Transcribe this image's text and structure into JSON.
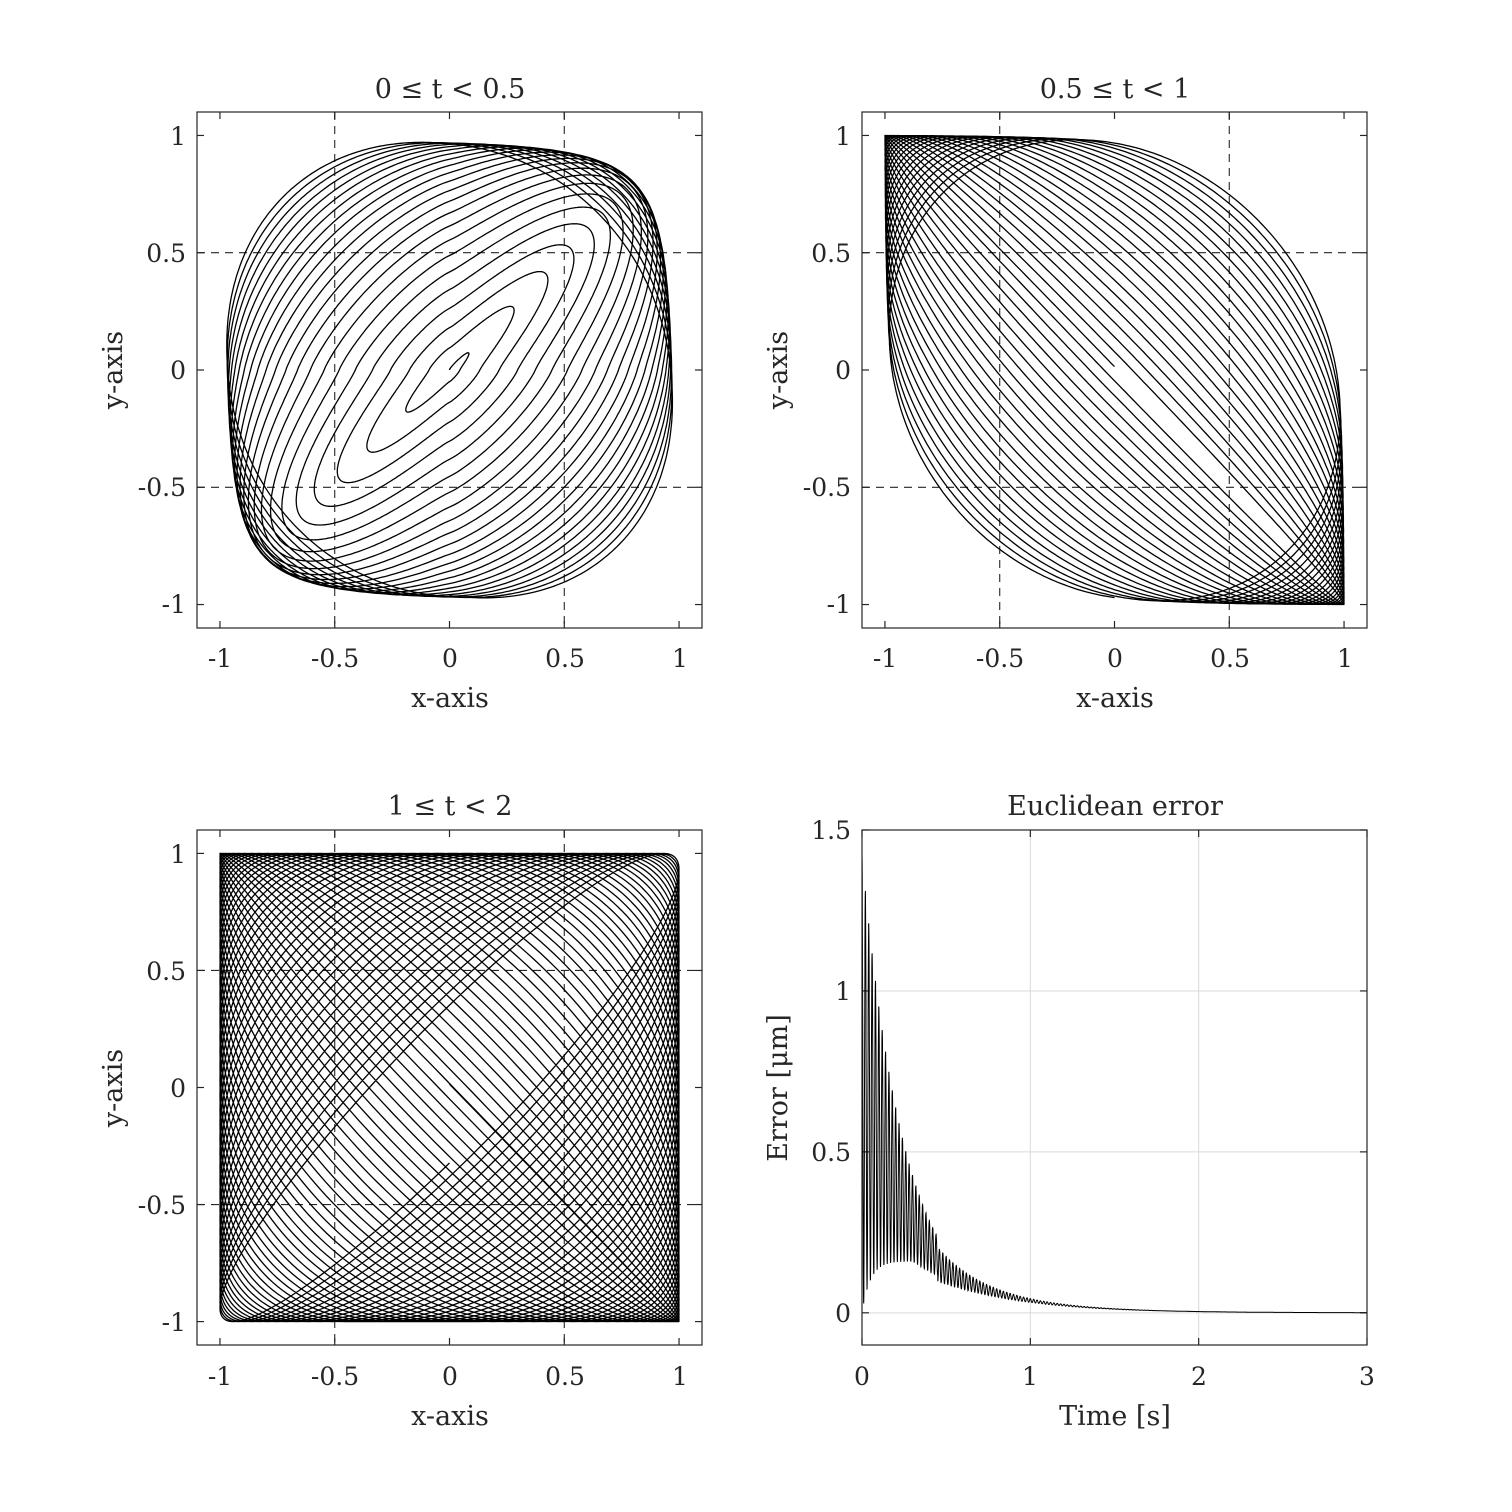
{
  "chart_data": [
    {
      "type": "line",
      "title": "0 ≤ t < 0.5",
      "xlabel": "x-axis",
      "ylabel": "y-axis",
      "xlim": [
        -1.1,
        1.1
      ],
      "ylim": [
        -1.1,
        1.1
      ],
      "xticks": [
        -1,
        -0.5,
        0,
        0.5,
        1
      ],
      "yticks": [
        -1,
        -0.5,
        0,
        0.5,
        1
      ],
      "xtick_labels": [
        "-1",
        "-0.5",
        "0",
        "0.5",
        "1"
      ],
      "ytick_labels": [
        "-1",
        "-0.5",
        "0",
        "0.5",
        "1"
      ],
      "grid": "dashed",
      "gridlines": [
        -0.5,
        0.5
      ],
      "curve": {
        "kind": "lissajous",
        "t_range": [
          0,
          0.5
        ],
        "amplitude_start": 0.0,
        "amplitude_end": 0.97,
        "freq_x": 100,
        "freq_y": 101,
        "skew": 0.24
      }
    },
    {
      "type": "line",
      "title": "0.5 ≤ t < 1",
      "xlabel": "x-axis",
      "ylabel": "y-axis",
      "xlim": [
        -1.1,
        1.1
      ],
      "ylim": [
        -1.1,
        1.1
      ],
      "xticks": [
        -1,
        -0.5,
        0,
        0.5,
        1
      ],
      "yticks": [
        -1,
        -0.5,
        0,
        0.5,
        1
      ],
      "xtick_labels": [
        "-1",
        "-0.5",
        "0",
        "0.5",
        "1"
      ],
      "ytick_labels": [
        "-1",
        "-0.5",
        "0",
        "0.5",
        "1"
      ],
      "grid": "dashed",
      "gridlines": [
        -0.5,
        0.5
      ],
      "curve": {
        "kind": "lissajous",
        "t_range": [
          0.5,
          1
        ],
        "amplitude_start": 0.98,
        "amplitude_end": 1.0,
        "freq_x": 100,
        "freq_y": 101,
        "skew": 0.02
      }
    },
    {
      "type": "line",
      "title": "1 ≤ t < 2",
      "xlabel": "x-axis",
      "ylabel": "y-axis",
      "xlim": [
        -1.1,
        1.1
      ],
      "ylim": [
        -1.1,
        1.1
      ],
      "xticks": [
        -1,
        -0.5,
        0,
        0.5,
        1
      ],
      "yticks": [
        -1,
        -0.5,
        0,
        0.5,
        1
      ],
      "xtick_labels": [
        "-1",
        "-0.5",
        "0",
        "0.5",
        "1"
      ],
      "ytick_labels": [
        "-1",
        "-0.5",
        "0",
        "0.5",
        "1"
      ],
      "grid": "dashed",
      "gridlines": [
        -0.5,
        0.5
      ],
      "curve": {
        "kind": "lissajous",
        "t_range": [
          1,
          2
        ],
        "amplitude_start": 1.0,
        "amplitude_end": 1.0,
        "freq_x": 100,
        "freq_y": 101,
        "skew": 0.0
      }
    },
    {
      "type": "line",
      "title": "Euclidean error",
      "xlabel": "Time [s]",
      "ylabel": "Error [μm]",
      "xlim": [
        0,
        3
      ],
      "ylim": [
        -0.1,
        1.5
      ],
      "xticks": [
        0,
        1,
        2,
        3
      ],
      "yticks": [
        0,
        0.5,
        1,
        1.5
      ],
      "xtick_labels": [
        "0",
        "1",
        "2",
        "3"
      ],
      "ytick_labels": [
        "0",
        "0.5",
        "1",
        "1.5"
      ],
      "grid": "solid-light",
      "series": [
        {
          "kind": "decaying-oscillation",
          "peak": 1.42,
          "envelope_decay": 4.0,
          "mean_peak": 0.16,
          "mean_decay": 2.2,
          "cycles_per_s": 50,
          "x_range": [
            0,
            3
          ]
        }
      ]
    }
  ]
}
